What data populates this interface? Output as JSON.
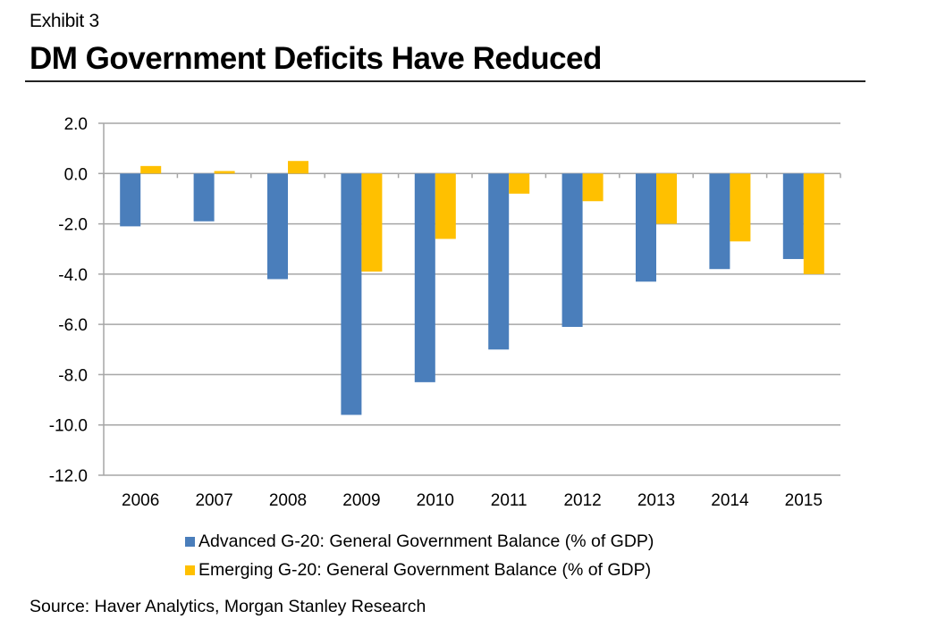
{
  "header": {
    "exhibit": "Exhibit 3",
    "title": "DM Government Deficits Have Reduced"
  },
  "source": "Source: Haver Analytics, Morgan Stanley Research",
  "chart_data": {
    "type": "bar",
    "title": "DM Government Deficits Have Reduced",
    "xlabel": "",
    "ylabel": "",
    "categories": [
      "2006",
      "2007",
      "2008",
      "2009",
      "2010",
      "2011",
      "2012",
      "2013",
      "2014",
      "2015"
    ],
    "series": [
      {
        "name": "Advanced G-20: General Government Balance (% of GDP)",
        "color": "#4a7ebb",
        "values": [
          -2.1,
          -1.9,
          -4.2,
          -9.6,
          -8.3,
          -7.0,
          -6.1,
          -4.3,
          -3.8,
          -3.4
        ]
      },
      {
        "name": "Emerging G-20: General Government Balance (% of GDP)",
        "color": "#ffc000",
        "values": [
          0.3,
          0.1,
          0.5,
          -3.9,
          -2.6,
          -0.8,
          -1.1,
          -2.0,
          -2.7,
          -4.0
        ]
      }
    ],
    "ylim": [
      -12.0,
      2.0
    ],
    "yticks": [
      "2.0",
      "0.0",
      "-2.0",
      "-4.0",
      "-6.0",
      "-8.0",
      "-10.0",
      "-12.0"
    ],
    "ytick_values": [
      2,
      0,
      -2,
      -4,
      -6,
      -8,
      -10,
      -12
    ],
    "grid": true,
    "legend_position": "bottom"
  }
}
